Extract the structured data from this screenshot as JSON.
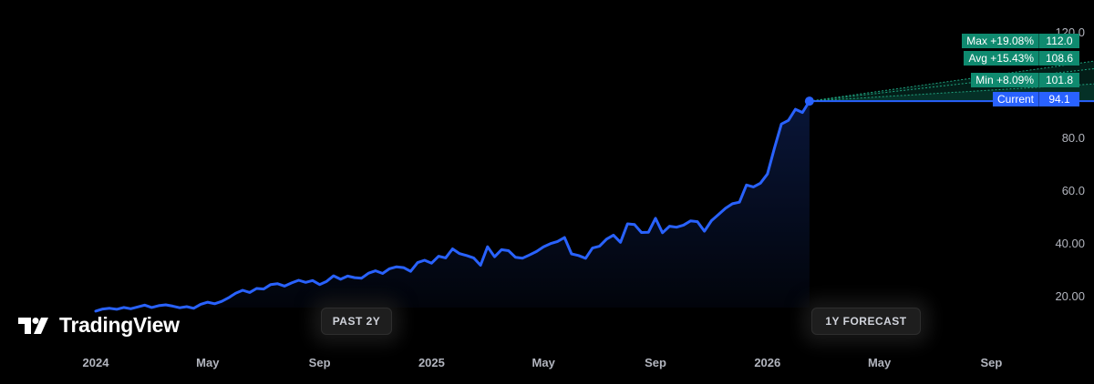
{
  "brand": {
    "name": "TradingView"
  },
  "chart_data": {
    "type": "line",
    "series": [
      {
        "values": [
          [
            0.0,
            14.5
          ],
          [
            0.25,
            15.3
          ],
          [
            0.5,
            15.6
          ],
          [
            0.75,
            15.2
          ],
          [
            1.0,
            15.9
          ],
          [
            1.25,
            15.4
          ],
          [
            1.5,
            16.1
          ],
          [
            1.75,
            16.8
          ],
          [
            2.0,
            15.9
          ],
          [
            2.25,
            16.6
          ],
          [
            2.5,
            16.9
          ],
          [
            2.75,
            16.4
          ],
          [
            3.0,
            15.8
          ],
          [
            3.25,
            16.2
          ],
          [
            3.5,
            15.6
          ],
          [
            3.75,
            17.1
          ],
          [
            4.0,
            17.9
          ],
          [
            4.25,
            17.3
          ],
          [
            4.5,
            18.2
          ],
          [
            4.75,
            19.6
          ],
          [
            5.0,
            21.3
          ],
          [
            5.25,
            22.4
          ],
          [
            5.5,
            21.6
          ],
          [
            5.75,
            23.1
          ],
          [
            6.0,
            22.9
          ],
          [
            6.25,
            24.6
          ],
          [
            6.5,
            24.9
          ],
          [
            6.75,
            24.0
          ],
          [
            7.0,
            25.2
          ],
          [
            7.25,
            26.2
          ],
          [
            7.5,
            25.4
          ],
          [
            7.75,
            26.1
          ],
          [
            8.0,
            24.6
          ],
          [
            8.25,
            25.8
          ],
          [
            8.5,
            27.9
          ],
          [
            8.75,
            26.6
          ],
          [
            9.0,
            27.8
          ],
          [
            9.25,
            27.2
          ],
          [
            9.5,
            27.0
          ],
          [
            9.75,
            28.9
          ],
          [
            10.0,
            29.8
          ],
          [
            10.25,
            28.8
          ],
          [
            10.5,
            30.6
          ],
          [
            10.75,
            31.3
          ],
          [
            11.0,
            31.0
          ],
          [
            11.25,
            29.6
          ],
          [
            11.5,
            32.9
          ],
          [
            11.75,
            33.8
          ],
          [
            12.0,
            32.7
          ],
          [
            12.25,
            35.3
          ],
          [
            12.5,
            34.7
          ],
          [
            12.75,
            38.1
          ],
          [
            13.0,
            36.3
          ],
          [
            13.25,
            35.6
          ],
          [
            13.5,
            34.7
          ],
          [
            13.75,
            31.9
          ],
          [
            14.0,
            38.9
          ],
          [
            14.25,
            35.1
          ],
          [
            14.5,
            37.8
          ],
          [
            14.75,
            37.4
          ],
          [
            15.0,
            34.9
          ],
          [
            15.25,
            34.6
          ],
          [
            15.5,
            35.8
          ],
          [
            15.75,
            37.1
          ],
          [
            16.0,
            38.9
          ],
          [
            16.25,
            40.1
          ],
          [
            16.5,
            40.9
          ],
          [
            16.75,
            42.4
          ],
          [
            17.0,
            36.2
          ],
          [
            17.25,
            35.6
          ],
          [
            17.5,
            34.5
          ],
          [
            17.75,
            38.4
          ],
          [
            18.0,
            39.1
          ],
          [
            18.25,
            41.8
          ],
          [
            18.5,
            43.3
          ],
          [
            18.75,
            40.6
          ],
          [
            19.0,
            47.6
          ],
          [
            19.25,
            47.3
          ],
          [
            19.5,
            44.3
          ],
          [
            19.75,
            44.4
          ],
          [
            20.0,
            49.7
          ],
          [
            20.25,
            44.2
          ],
          [
            20.5,
            46.7
          ],
          [
            20.75,
            46.3
          ],
          [
            21.0,
            47.1
          ],
          [
            21.25,
            48.7
          ],
          [
            21.5,
            48.4
          ],
          [
            21.75,
            44.8
          ],
          [
            22.0,
            48.8
          ],
          [
            22.25,
            51.1
          ],
          [
            22.5,
            53.5
          ],
          [
            22.75,
            55.2
          ],
          [
            23.0,
            55.8
          ],
          [
            23.25,
            62.3
          ],
          [
            23.5,
            61.6
          ],
          [
            23.75,
            63.0
          ],
          [
            24.0,
            66.5
          ],
          [
            24.25,
            76.3
          ],
          [
            24.5,
            85.4
          ],
          [
            24.75,
            86.8
          ],
          [
            25.0,
            91.0
          ],
          [
            25.25,
            89.8
          ],
          [
            25.5,
            94.1
          ]
        ]
      }
    ],
    "x_unit": "months since Jan 2024",
    "x_ticks": [
      {
        "x": 0,
        "label": "2024"
      },
      {
        "x": 4,
        "label": "May"
      },
      {
        "x": 8,
        "label": "Sep"
      },
      {
        "x": 12,
        "label": "2025"
      },
      {
        "x": 16,
        "label": "May"
      },
      {
        "x": 20,
        "label": "Sep"
      },
      {
        "x": 24,
        "label": "2026"
      },
      {
        "x": 28,
        "label": "May"
      },
      {
        "x": 32,
        "label": "Sep"
      }
    ],
    "y_ticks": [
      "20.00",
      "40.00",
      "60.0",
      "80.0",
      "120.0"
    ],
    "ylim": [
      10,
      120
    ],
    "forecast": {
      "current": 94.1,
      "max": 112.0,
      "avg": 108.6,
      "min": 101.8,
      "end_x": 37.5
    },
    "labels": {
      "max": {
        "name": "Max +19.08%",
        "value": "112.0"
      },
      "avg": {
        "name": "Avg +15.43%",
        "value": "108.6"
      },
      "min": {
        "name": "Min +8.09%",
        "value": "101.8"
      },
      "current": {
        "name": "Current",
        "value": "94.1"
      }
    },
    "period_labels": {
      "past": "PAST 2Y",
      "forecast": "1Y FORECAST"
    },
    "colors": {
      "line": "#2962ff",
      "forecast": "#0f8a6f",
      "current_tag": "#2962ff"
    }
  }
}
